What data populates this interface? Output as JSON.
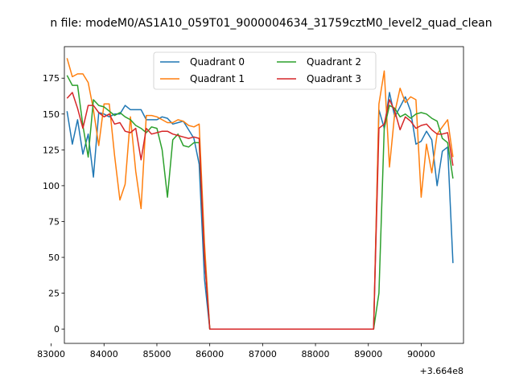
{
  "chart_data": {
    "type": "line",
    "title": "n file: modeM0/AS1A10_059T01_9000004634_31759cztM0_level2_quad_clean",
    "x_offset_label": "+3.664e8",
    "xlim": [
      83250,
      90800
    ],
    "ylim": [
      -10,
      197
    ],
    "x_ticks": [
      83000,
      84000,
      85000,
      86000,
      87000,
      88000,
      89000,
      90000
    ],
    "x_tick_labels": [
      "83000",
      "84000",
      "85000",
      "86000",
      "87000",
      "88000",
      "89000",
      "90000"
    ],
    "y_ticks": [
      0,
      25,
      50,
      75,
      100,
      125,
      150,
      175
    ],
    "y_tick_labels": [
      "0",
      "25",
      "50",
      "75",
      "100",
      "125",
      "150",
      "175"
    ],
    "legend": {
      "position": "upper center",
      "ncol": 2
    },
    "series": [
      {
        "name": "Quadrant 0",
        "color": "#1f77b4",
        "points": [
          [
            83300,
            152
          ],
          [
            83400,
            129
          ],
          [
            83500,
            146
          ],
          [
            83600,
            122
          ],
          [
            83700,
            136
          ],
          [
            83800,
            106
          ],
          [
            83900,
            151
          ],
          [
            84000,
            150
          ],
          [
            84100,
            148
          ],
          [
            84200,
            150
          ],
          [
            84300,
            150
          ],
          [
            84400,
            156
          ],
          [
            84500,
            153
          ],
          [
            84600,
            153
          ],
          [
            84700,
            153
          ],
          [
            84800,
            146
          ],
          [
            84900,
            146
          ],
          [
            85000,
            146
          ],
          [
            85100,
            148
          ],
          [
            85200,
            147
          ],
          [
            85300,
            143
          ],
          [
            85400,
            144
          ],
          [
            85500,
            145
          ],
          [
            85600,
            139
          ],
          [
            85700,
            133
          ],
          [
            85800,
            115
          ],
          [
            85900,
            35
          ],
          [
            86000,
            0
          ],
          [
            86500,
            0
          ],
          [
            87000,
            0
          ],
          [
            87500,
            0
          ],
          [
            88000,
            0
          ],
          [
            88500,
            0
          ],
          [
            89000,
            0
          ],
          [
            89100,
            0
          ],
          [
            89200,
            153
          ],
          [
            89300,
            140
          ],
          [
            89400,
            165
          ],
          [
            89500,
            148
          ],
          [
            89600,
            155
          ],
          [
            89700,
            162
          ],
          [
            89800,
            152
          ],
          [
            89900,
            129
          ],
          [
            90000,
            131
          ],
          [
            90100,
            138
          ],
          [
            90200,
            132
          ],
          [
            90300,
            100
          ],
          [
            90400,
            124
          ],
          [
            90500,
            127
          ],
          [
            90600,
            46
          ]
        ]
      },
      {
        "name": "Quadrant 1",
        "color": "#ff7f0e",
        "points": [
          [
            83300,
            189
          ],
          [
            83400,
            176
          ],
          [
            83500,
            178
          ],
          [
            83600,
            178
          ],
          [
            83700,
            172
          ],
          [
            83800,
            153
          ],
          [
            83900,
            128
          ],
          [
            84000,
            157
          ],
          [
            84100,
            157
          ],
          [
            84200,
            121
          ],
          [
            84300,
            90
          ],
          [
            84400,
            101
          ],
          [
            84500,
            148
          ],
          [
            84600,
            110
          ],
          [
            84700,
            84
          ],
          [
            84800,
            149
          ],
          [
            84900,
            149
          ],
          [
            85000,
            148
          ],
          [
            85100,
            146
          ],
          [
            85200,
            144
          ],
          [
            85300,
            144
          ],
          [
            85400,
            146
          ],
          [
            85500,
            145
          ],
          [
            85600,
            142
          ],
          [
            85700,
            141
          ],
          [
            85800,
            143
          ],
          [
            85900,
            60
          ],
          [
            86000,
            0
          ],
          [
            86500,
            0
          ],
          [
            87000,
            0
          ],
          [
            87500,
            0
          ],
          [
            88000,
            0
          ],
          [
            88500,
            0
          ],
          [
            89000,
            0
          ],
          [
            89100,
            0
          ],
          [
            89200,
            157
          ],
          [
            89300,
            180
          ],
          [
            89400,
            113
          ],
          [
            89500,
            151
          ],
          [
            89600,
            168
          ],
          [
            89700,
            158
          ],
          [
            89800,
            162
          ],
          [
            89900,
            160
          ],
          [
            90000,
            92
          ],
          [
            90100,
            129
          ],
          [
            90200,
            109
          ],
          [
            90300,
            136
          ],
          [
            90400,
            141
          ],
          [
            90500,
            146
          ],
          [
            90600,
            120
          ]
        ]
      },
      {
        "name": "Quadrant 2",
        "color": "#2ca02c",
        "points": [
          [
            83300,
            177
          ],
          [
            83400,
            170
          ],
          [
            83500,
            170
          ],
          [
            83600,
            142
          ],
          [
            83700,
            120
          ],
          [
            83800,
            160
          ],
          [
            83900,
            156
          ],
          [
            84000,
            155
          ],
          [
            84100,
            152
          ],
          [
            84200,
            149
          ],
          [
            84300,
            151
          ],
          [
            84400,
            148
          ],
          [
            84500,
            146
          ],
          [
            84600,
            142
          ],
          [
            84700,
            140
          ],
          [
            84800,
            137
          ],
          [
            84900,
            141
          ],
          [
            85000,
            140
          ],
          [
            85100,
            125
          ],
          [
            85200,
            92
          ],
          [
            85300,
            132
          ],
          [
            85400,
            136
          ],
          [
            85500,
            128
          ],
          [
            85600,
            127
          ],
          [
            85700,
            130
          ],
          [
            85800,
            130
          ],
          [
            85900,
            50
          ],
          [
            86000,
            0
          ],
          [
            86500,
            0
          ],
          [
            87000,
            0
          ],
          [
            87500,
            0
          ],
          [
            88000,
            0
          ],
          [
            88500,
            0
          ],
          [
            89000,
            0
          ],
          [
            89100,
            0
          ],
          [
            89200,
            25
          ],
          [
            89300,
            140
          ],
          [
            89400,
            156
          ],
          [
            89500,
            154
          ],
          [
            89600,
            148
          ],
          [
            89700,
            150
          ],
          [
            89800,
            147
          ],
          [
            89900,
            150
          ],
          [
            90000,
            151
          ],
          [
            90100,
            150
          ],
          [
            90200,
            147
          ],
          [
            90300,
            145
          ],
          [
            90400,
            133
          ],
          [
            90500,
            130
          ],
          [
            90600,
            105
          ]
        ]
      },
      {
        "name": "Quadrant 3",
        "color": "#d62728",
        "points": [
          [
            83300,
            161
          ],
          [
            83400,
            165
          ],
          [
            83500,
            154
          ],
          [
            83600,
            140
          ],
          [
            83700,
            156
          ],
          [
            83800,
            156
          ],
          [
            83900,
            151
          ],
          [
            84000,
            148
          ],
          [
            84100,
            150
          ],
          [
            84200,
            143
          ],
          [
            84300,
            144
          ],
          [
            84400,
            138
          ],
          [
            84500,
            137
          ],
          [
            84600,
            140
          ],
          [
            84700,
            118
          ],
          [
            84800,
            140
          ],
          [
            84900,
            136
          ],
          [
            85000,
            137
          ],
          [
            85100,
            138
          ],
          [
            85200,
            138
          ],
          [
            85300,
            136
          ],
          [
            85400,
            135
          ],
          [
            85500,
            134
          ],
          [
            85600,
            133
          ],
          [
            85700,
            134
          ],
          [
            85800,
            133
          ],
          [
            85900,
            50
          ],
          [
            86000,
            0
          ],
          [
            86500,
            0
          ],
          [
            87000,
            0
          ],
          [
            87500,
            0
          ],
          [
            88000,
            0
          ],
          [
            88500,
            0
          ],
          [
            89000,
            0
          ],
          [
            89100,
            0
          ],
          [
            89200,
            140
          ],
          [
            89300,
            143
          ],
          [
            89400,
            160
          ],
          [
            89500,
            152
          ],
          [
            89600,
            139
          ],
          [
            89700,
            148
          ],
          [
            89800,
            145
          ],
          [
            89900,
            140
          ],
          [
            90000,
            142
          ],
          [
            90100,
            143
          ],
          [
            90200,
            139
          ],
          [
            90300,
            136
          ],
          [
            90400,
            136
          ],
          [
            90500,
            137
          ],
          [
            90600,
            114
          ]
        ]
      }
    ]
  }
}
